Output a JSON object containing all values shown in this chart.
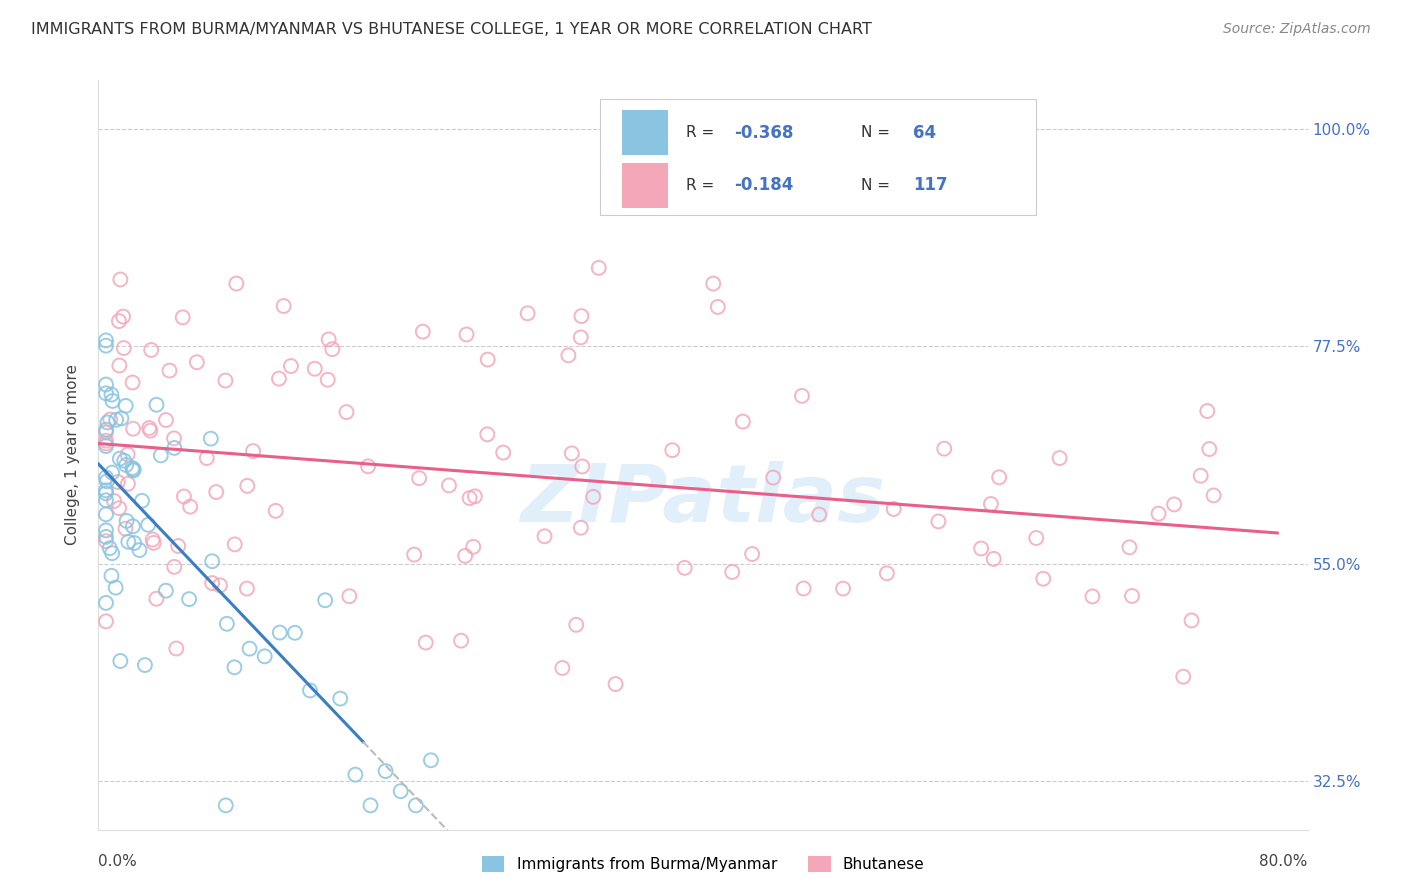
{
  "title": "IMMIGRANTS FROM BURMA/MYANMAR VS BHUTANESE COLLEGE, 1 YEAR OR MORE CORRELATION CHART",
  "source": "Source: ZipAtlas.com",
  "ylabel": "College, 1 year or more",
  "ytick_labels": [
    "32.5%",
    "55.0%",
    "77.5%",
    "100.0%"
  ],
  "ytick_vals": [
    0.325,
    0.55,
    0.775,
    1.0
  ],
  "xlim": [
    0.0,
    0.8
  ],
  "ylim": [
    0.275,
    1.05
  ],
  "color_blue_scatter": "#89c4e1",
  "color_pink_scatter": "#f4a7b9",
  "color_trend_blue": "#3a7fc1",
  "color_trend_pink": "#e8608a",
  "color_trend_dashed": "#bbbbbb",
  "watermark": "ZIPatlas",
  "legend_items": [
    {
      "r": "-0.368",
      "n": "64"
    },
    {
      "r": "-0.184",
      "n": "117"
    }
  ]
}
